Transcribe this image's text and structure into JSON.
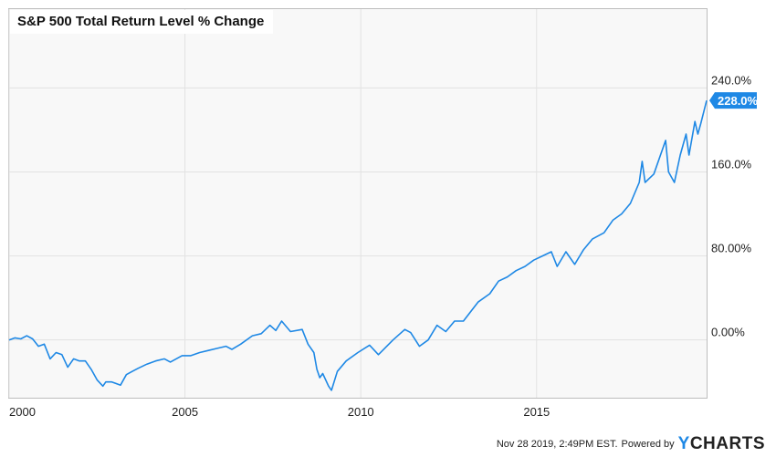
{
  "chart_data": {
    "type": "line",
    "title": "S&P 500 Total Return Level % Change",
    "series": [
      {
        "color": "#1e88e5",
        "points": [
          [
            "2000-01",
            0
          ],
          [
            "2000-03",
            2
          ],
          [
            "2000-05",
            1
          ],
          [
            "2000-07",
            4
          ],
          [
            "2000-09",
            1
          ],
          [
            "2000-11",
            -6
          ],
          [
            "2001-01",
            -4
          ],
          [
            "2001-03",
            -18
          ],
          [
            "2001-05",
            -12
          ],
          [
            "2001-07",
            -14
          ],
          [
            "2001-09",
            -26
          ],
          [
            "2001-11",
            -18
          ],
          [
            "2002-01",
            -20
          ],
          [
            "2002-03",
            -20
          ],
          [
            "2002-05",
            -28
          ],
          [
            "2002-07",
            -38
          ],
          [
            "2002-09",
            -44
          ],
          [
            "2002-10",
            -40
          ],
          [
            "2002-12",
            -40
          ],
          [
            "2003-03",
            -43
          ],
          [
            "2003-05",
            -33
          ],
          [
            "2003-07",
            -30
          ],
          [
            "2003-09",
            -27
          ],
          [
            "2003-12",
            -23
          ],
          [
            "2004-03",
            -20
          ],
          [
            "2004-06",
            -18
          ],
          [
            "2004-08",
            -21
          ],
          [
            "2004-12",
            -15
          ],
          [
            "2005-03",
            -15
          ],
          [
            "2005-06",
            -12
          ],
          [
            "2005-09",
            -10
          ],
          [
            "2005-12",
            -8
          ],
          [
            "2006-03",
            -6
          ],
          [
            "2006-05",
            -9
          ],
          [
            "2006-08",
            -4
          ],
          [
            "2006-12",
            4
          ],
          [
            "2007-03",
            6
          ],
          [
            "2007-06",
            14
          ],
          [
            "2007-08",
            9
          ],
          [
            "2007-10",
            18
          ],
          [
            "2008-01",
            8
          ],
          [
            "2008-05",
            10
          ],
          [
            "2008-07",
            -4
          ],
          [
            "2008-09",
            -12
          ],
          [
            "2008-10",
            -28
          ],
          [
            "2008-11",
            -36
          ],
          [
            "2008-12",
            -32
          ],
          [
            "2009-02",
            -44
          ],
          [
            "2009-03",
            -48
          ],
          [
            "2009-05",
            -30
          ],
          [
            "2009-08",
            -20
          ],
          [
            "2009-12",
            -12
          ],
          [
            "2010-04",
            -5
          ],
          [
            "2010-07",
            -14
          ],
          [
            "2010-12",
            0
          ],
          [
            "2011-04",
            10
          ],
          [
            "2011-06",
            7
          ],
          [
            "2011-09",
            -6
          ],
          [
            "2011-12",
            0
          ],
          [
            "2012-03",
            14
          ],
          [
            "2012-06",
            8
          ],
          [
            "2012-09",
            18
          ],
          [
            "2012-12",
            18
          ],
          [
            "2013-05",
            36
          ],
          [
            "2013-09",
            44
          ],
          [
            "2013-12",
            56
          ],
          [
            "2014-03",
            60
          ],
          [
            "2014-06",
            66
          ],
          [
            "2014-09",
            70
          ],
          [
            "2014-12",
            76
          ],
          [
            "2015-03",
            80
          ],
          [
            "2015-06",
            84
          ],
          [
            "2015-08",
            70
          ],
          [
            "2015-11",
            84
          ],
          [
            "2016-02",
            72
          ],
          [
            "2016-05",
            86
          ],
          [
            "2016-08",
            96
          ],
          [
            "2016-12",
            102
          ],
          [
            "2017-03",
            114
          ],
          [
            "2017-06",
            120
          ],
          [
            "2017-09",
            130
          ],
          [
            "2017-12",
            150
          ],
          [
            "2018-01",
            170
          ],
          [
            "2018-02",
            150
          ],
          [
            "2018-05",
            158
          ],
          [
            "2018-09",
            190
          ],
          [
            "2018-10",
            160
          ],
          [
            "2018-12",
            150
          ],
          [
            "2019-02",
            176
          ],
          [
            "2019-04",
            196
          ],
          [
            "2019-05",
            176
          ],
          [
            "2019-07",
            208
          ],
          [
            "2019-08",
            196
          ],
          [
            "2019-09",
            206
          ],
          [
            "2019-11",
            228
          ]
        ]
      }
    ],
    "x_ticks": [
      "2000",
      "2005",
      "2010",
      "2015"
    ],
    "y_ticks": [
      "240.0%",
      "160.0%",
      "80.00%",
      "0.00%"
    ],
    "y_tick_values": [
      240,
      160,
      80,
      0
    ],
    "xlim": [
      "2000-01",
      "2019-11"
    ],
    "ylim": [
      -55,
      315
    ],
    "grid": true,
    "last_value_label": "228.0%",
    "last_value": 228
  },
  "footer": {
    "timestamp": "Nov 28 2019, 2:49PM EST.",
    "powered_by": "Powered by",
    "brand_y": "Y",
    "brand_rest": "CHARTS"
  }
}
